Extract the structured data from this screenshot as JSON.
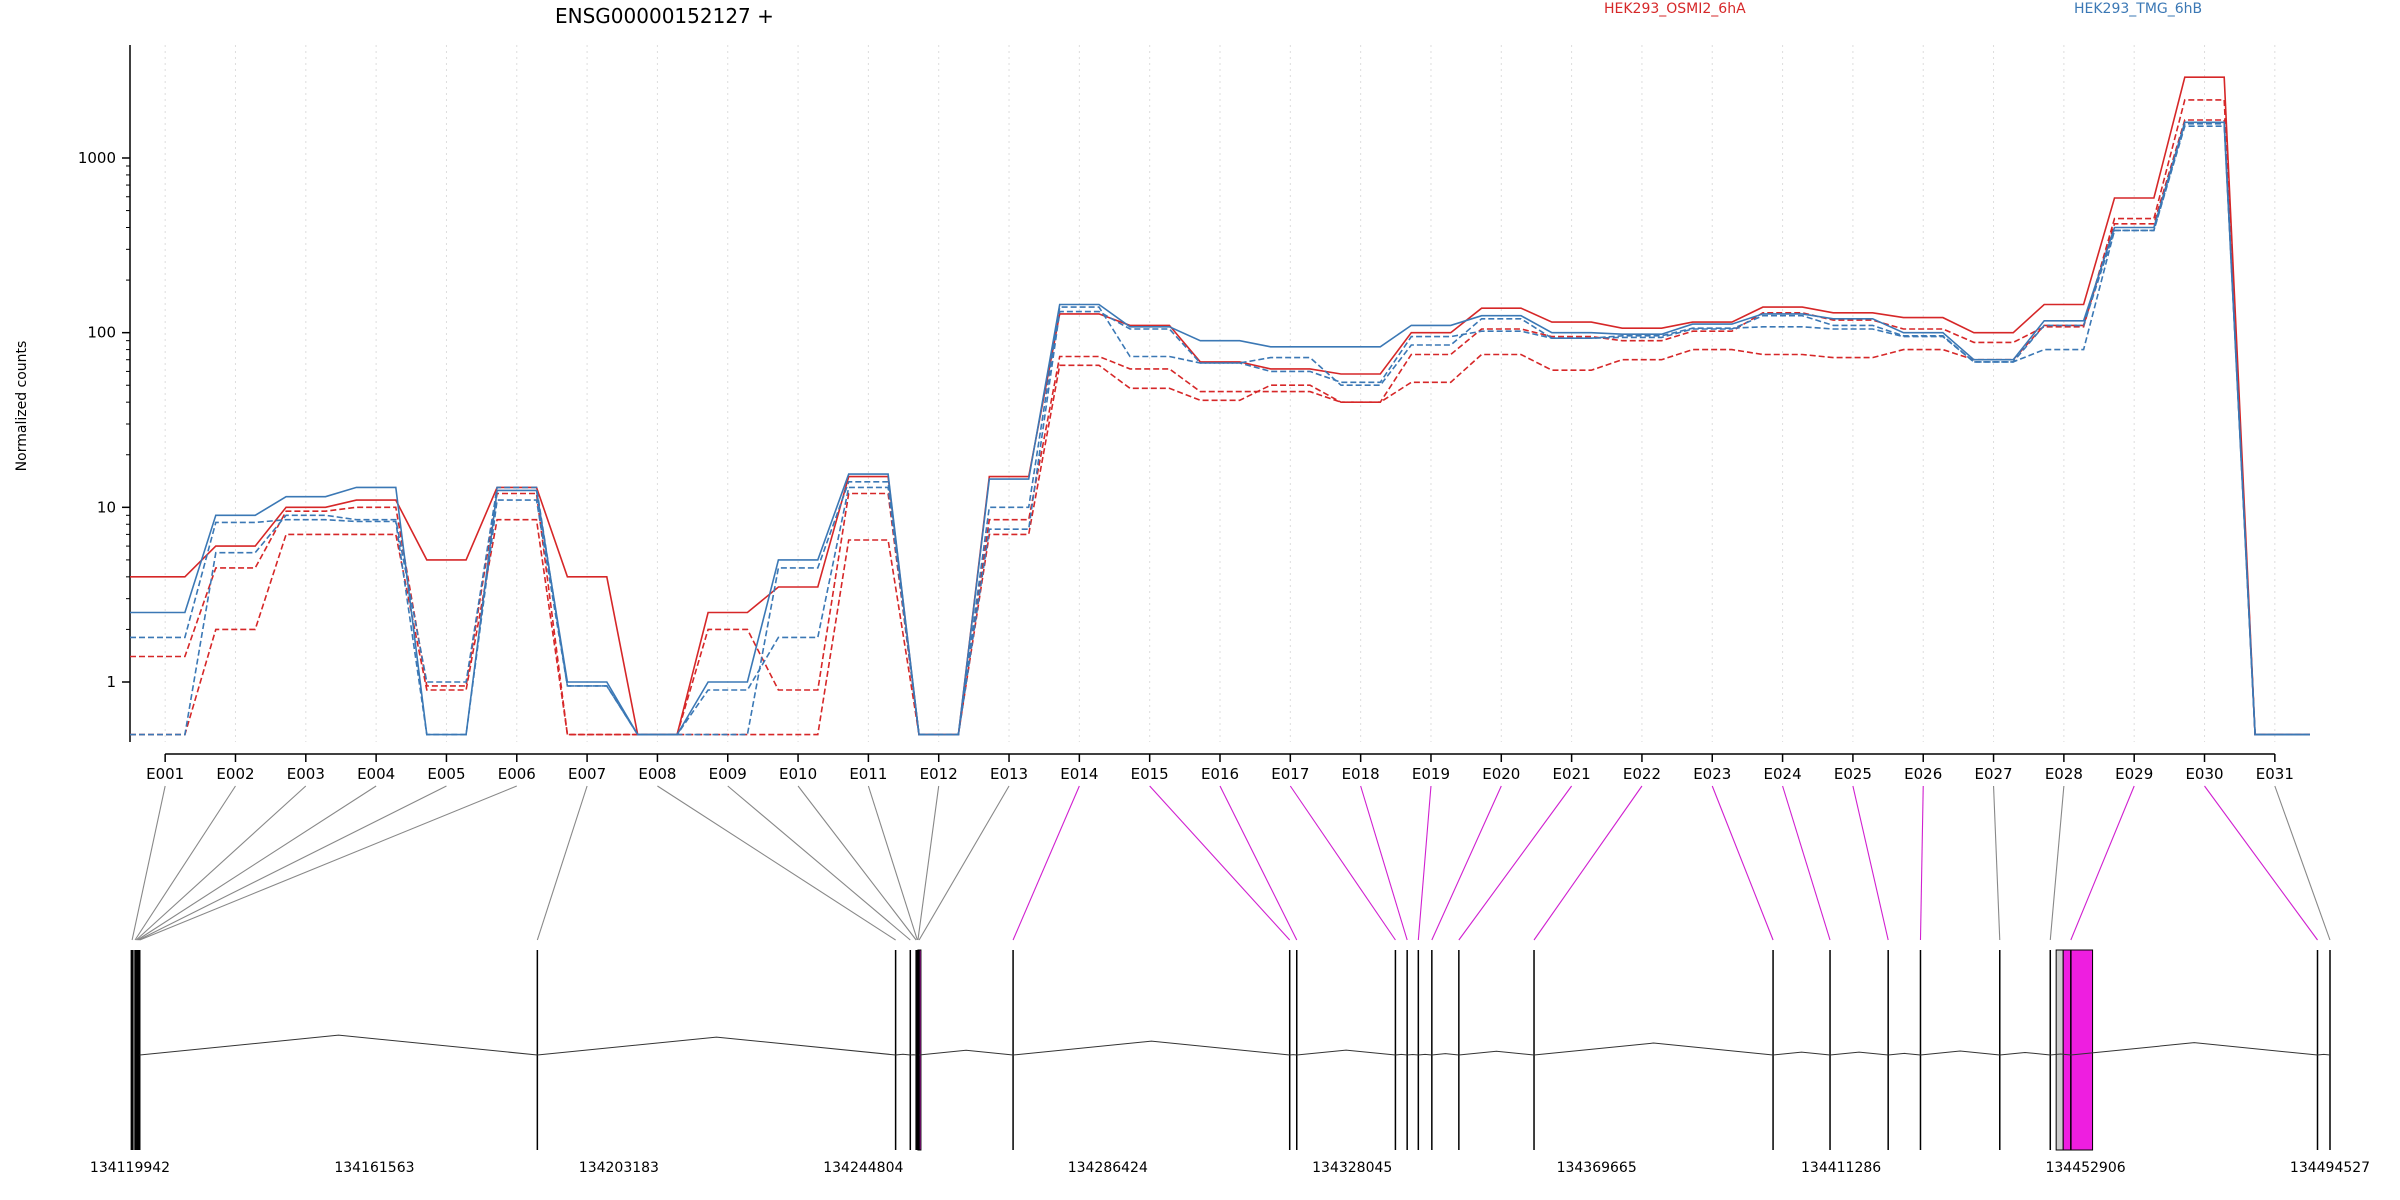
{
  "chart_data": {
    "type": "line",
    "title": "ENSG00000152127 +",
    "ylabel": "Normalized counts",
    "xlabel": "",
    "yscale": "log",
    "yticks": [
      1,
      10,
      100,
      1000
    ],
    "ytick_labels": [
      "1",
      "10",
      "100",
      "1000"
    ],
    "ylim": [
      0.5,
      3500
    ],
    "grid": "vertical dotted lines at each exon",
    "legend": [
      {
        "label": "HEK293_OSMI2_6hA",
        "color": "#d62728"
      },
      {
        "label": "HEK293_TMG_6hB",
        "color": "#3b78b5"
      }
    ],
    "categories": [
      "E001",
      "E002",
      "E003",
      "E004",
      "E005",
      "E006",
      "E007",
      "E008",
      "E009",
      "E010",
      "E011",
      "E012",
      "E013",
      "E014",
      "E015",
      "E016",
      "E017",
      "E018",
      "E019",
      "E020",
      "E021",
      "E022",
      "E023",
      "E024",
      "E025",
      "E026",
      "E027",
      "E028",
      "E029",
      "E030",
      "E031"
    ],
    "series": [
      {
        "group": "HEK293_OSMI2_6hA",
        "color": "#d62728",
        "values": [
          4.0,
          6.0,
          10.0,
          11.0,
          5.0,
          13.0,
          4.0,
          0.5,
          2.5,
          3.5,
          15.0,
          0.5,
          15.0,
          128,
          110,
          68,
          62,
          58,
          100,
          138,
          115,
          106,
          115,
          140,
          130,
          122,
          100,
          145,
          590,
          2900,
          0.5
        ]
      },
      {
        "group": "HEK293_OSMI2_6hA",
        "color": "#d62728",
        "values": [
          1.4,
          4.5,
          9.5,
          10.0,
          0.95,
          12.0,
          0.5,
          0.5,
          2.0,
          0.9,
          12.0,
          0.5,
          8.5,
          73,
          62,
          46,
          46,
          40,
          75,
          105,
          95,
          90,
          102,
          130,
          118,
          105,
          88,
          108,
          450,
          2150,
          0.5
        ]
      },
      {
        "group": "HEK293_OSMI2_6hA",
        "color": "#d62728",
        "values": [
          0.5,
          2.0,
          7.0,
          7.0,
          0.9,
          8.5,
          0.5,
          0.5,
          0.5,
          0.5,
          6.5,
          0.5,
          7.0,
          65,
          48,
          41,
          50,
          40,
          52,
          75,
          61,
          70,
          80,
          75,
          72,
          80,
          70,
          110,
          420,
          1650,
          0.5
        ]
      },
      {
        "group": "HEK293_TMG_6hB",
        "color": "#3b78b5",
        "values": [
          2.5,
          9.0,
          11.5,
          13.0,
          0.5,
          12.5,
          1.0,
          0.5,
          1.0,
          5.0,
          15.5,
          0.5,
          14.5,
          145,
          108,
          90,
          83,
          83,
          110,
          125,
          100,
          98,
          112,
          128,
          120,
          100,
          70,
          117,
          400,
          1600,
          0.5
        ]
      },
      {
        "group": "HEK293_TMG_6hB",
        "color": "#3b78b5",
        "values": [
          1.8,
          8.2,
          8.5,
          8.3,
          0.5,
          11.0,
          0.95,
          0.5,
          0.9,
          1.8,
          13.0,
          0.5,
          10.0,
          140,
          73,
          67,
          72,
          50,
          85,
          120,
          93,
          96,
          106,
          108,
          105,
          95,
          68,
          80,
          385,
          1570,
          0.5
        ]
      },
      {
        "group": "HEK293_TMG_6hB",
        "color": "#3b78b5",
        "values": [
          0.5,
          5.5,
          9.0,
          8.5,
          1.0,
          13.0,
          0.95,
          0.5,
          0.5,
          4.5,
          14.0,
          0.5,
          7.5,
          132,
          105,
          67,
          60,
          52,
          95,
          102,
          93,
          94,
          105,
          125,
          110,
          96,
          68,
          110,
          385,
          1520,
          0.5
        ]
      }
    ],
    "exon_colors": [
      "#888888",
      "#888888",
      "#888888",
      "#888888",
      "#888888",
      "#888888",
      "#888888",
      "#888888",
      "#888888",
      "#888888",
      "#888888",
      "#888888",
      "#888888",
      "#d020d0",
      "#d020d0",
      "#d020d0",
      "#d020d0",
      "#d020d0",
      "#d020d0",
      "#d020d0",
      "#d020d0",
      "#d020d0",
      "#d020d0",
      "#d020d0",
      "#d020d0",
      "#d020d0",
      "#888888",
      "#888888",
      "#d020d0",
      "#d020d0",
      "#888888"
    ],
    "gene_model": {
      "coordinate_ticks": [
        "134119942",
        "134161563",
        "134203183",
        "134244804",
        "134286424",
        "134328045",
        "134369665",
        "134411286",
        "134452906",
        "134494527"
      ],
      "genomic_range": [
        134119942,
        134494527
      ],
      "exon_positions": [
        134120300,
        134120800,
        134121000,
        134121200,
        134121400,
        134121600,
        134189300,
        134250300,
        134252800,
        134253800,
        134254000,
        134254100,
        134254300,
        134270300,
        134317400,
        134318600,
        134335400,
        134337400,
        134339300,
        134341600,
        134346200,
        134359000,
        134399700,
        134409400,
        134419300,
        134424800,
        134438300,
        134446900,
        134450400,
        134492400,
        134494527
      ],
      "exon_widths": [
        400,
        200,
        200,
        200,
        200,
        200,
        300,
        300,
        300,
        300,
        300,
        300,
        300,
        300,
        300,
        300,
        300,
        300,
        300,
        300,
        300,
        300,
        300,
        300,
        300,
        300,
        300,
        300,
        300,
        300,
        300
      ],
      "highlight_exons": [
        {
          "start": 134254100,
          "end": 134254500,
          "color": "#ee1ee0"
        },
        {
          "start": 134447900,
          "end": 134449100,
          "color": "#cccccc"
        },
        {
          "start": 134449100,
          "end": 134454100,
          "color": "#ee1ee0"
        }
      ]
    }
  }
}
